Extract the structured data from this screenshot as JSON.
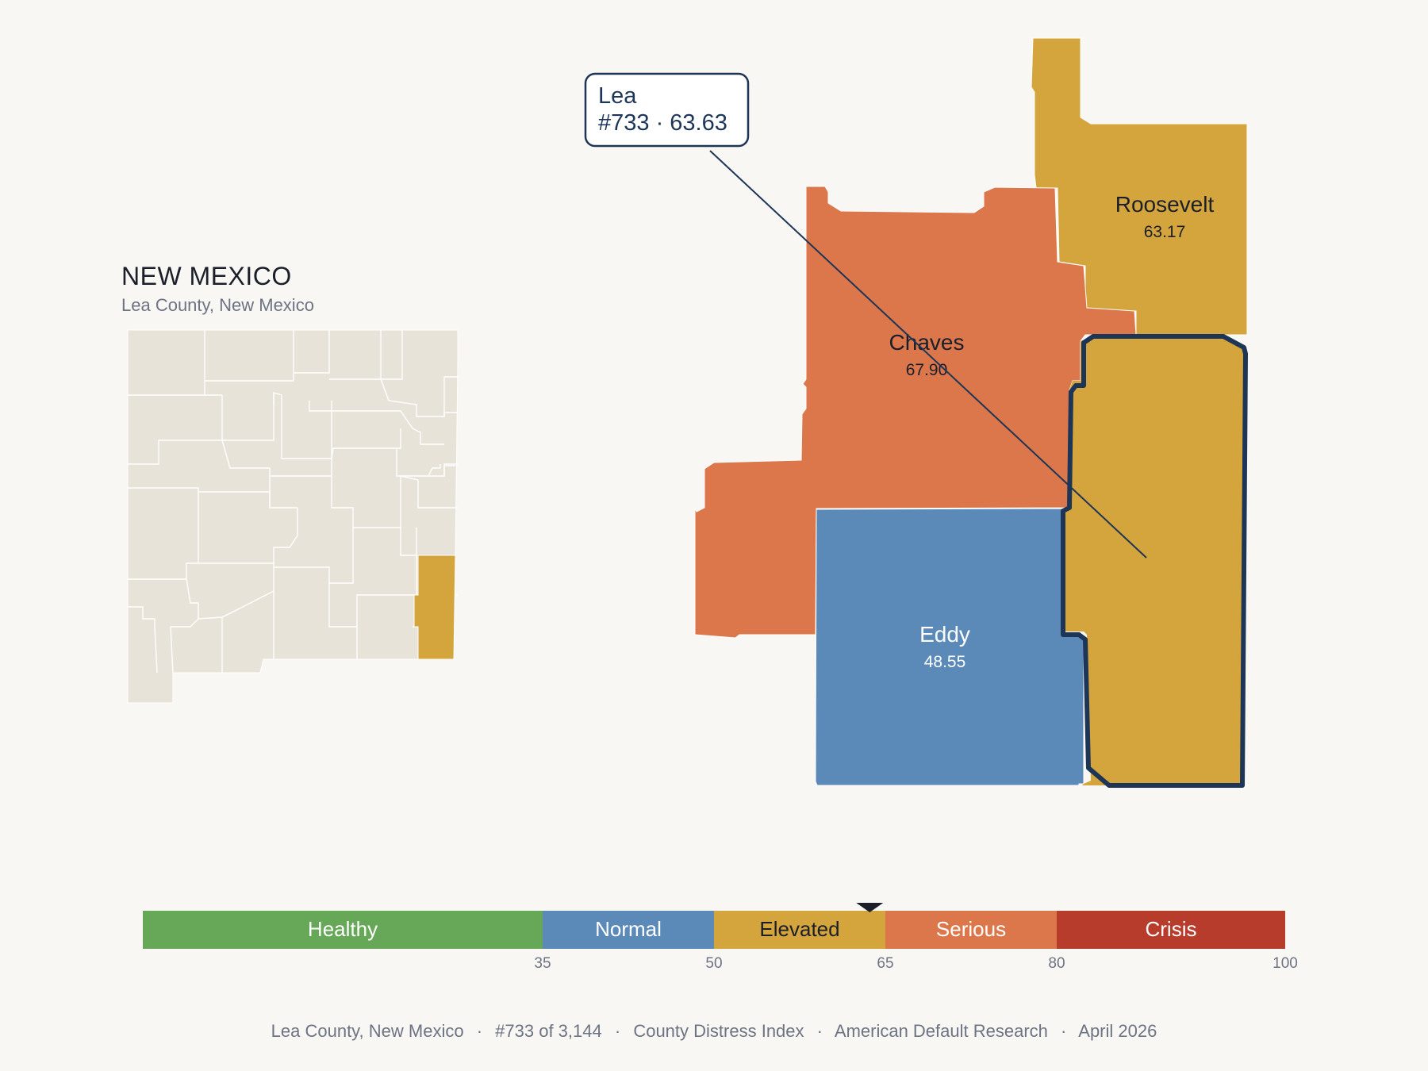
{
  "state": {
    "title": "NEW MEXICO",
    "subtitle": "Lea County, New Mexico",
    "highlight_color": "#d4a53c",
    "base_color": "#e8e3d9"
  },
  "callout": {
    "name": "Lea",
    "detail": "#733 · 63.63"
  },
  "counties": [
    {
      "id": "roosevelt",
      "name": "Roosevelt",
      "value": "63.17",
      "color": "#d4a53c",
      "label_color": "#1b1f2a"
    },
    {
      "id": "chaves",
      "name": "Chaves",
      "value": "67.90",
      "color": "#db774b",
      "label_color": "#1b1f2a"
    },
    {
      "id": "eddy",
      "name": "Eddy",
      "value": "48.55",
      "color": "#5c8ab8",
      "label_color": "#ffffff"
    },
    {
      "id": "lea",
      "name": "Lea",
      "value": "63.63",
      "color": "#d4a53c",
      "outline": "#1d3557"
    }
  ],
  "scale": {
    "segments": [
      {
        "label": "Healthy",
        "from": 0,
        "to": 35,
        "color": "#66a758",
        "text_color": "#ffffff"
      },
      {
        "label": "Normal",
        "from": 35,
        "to": 50,
        "color": "#5c8ab8",
        "text_color": "#ffffff"
      },
      {
        "label": "Elevated",
        "from": 50,
        "to": 65,
        "color": "#d4a53c",
        "text_color": "#1b1f2a"
      },
      {
        "label": "Serious",
        "from": 65,
        "to": 80,
        "color": "#db774b",
        "text_color": "#ffffff"
      },
      {
        "label": "Crisis",
        "from": 80,
        "to": 100,
        "color": "#b83c2c",
        "text_color": "#ffffff"
      }
    ],
    "ticks": [
      "35",
      "50",
      "65",
      "80",
      "100"
    ],
    "marker_value": 63.63
  },
  "footer": {
    "county": "Lea County, New Mexico",
    "rank": "#733 of 3,144",
    "index": "County Distress Index",
    "source": "American Default Research",
    "date": "April 2026"
  }
}
